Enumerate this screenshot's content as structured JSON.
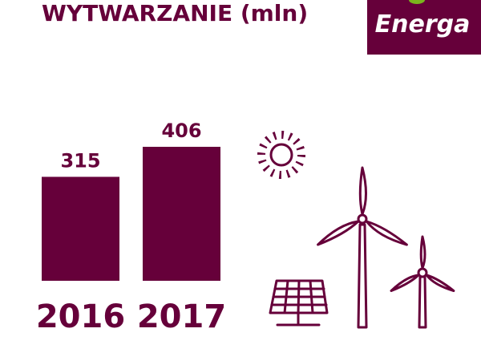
{
  "logo": "Energa",
  "chart_data": {
    "type": "bar",
    "title": "WYTWARZANIE (mln)",
    "categories": [
      "2016",
      "2017"
    ],
    "values": [
      315,
      406
    ],
    "color": "#66003a"
  }
}
